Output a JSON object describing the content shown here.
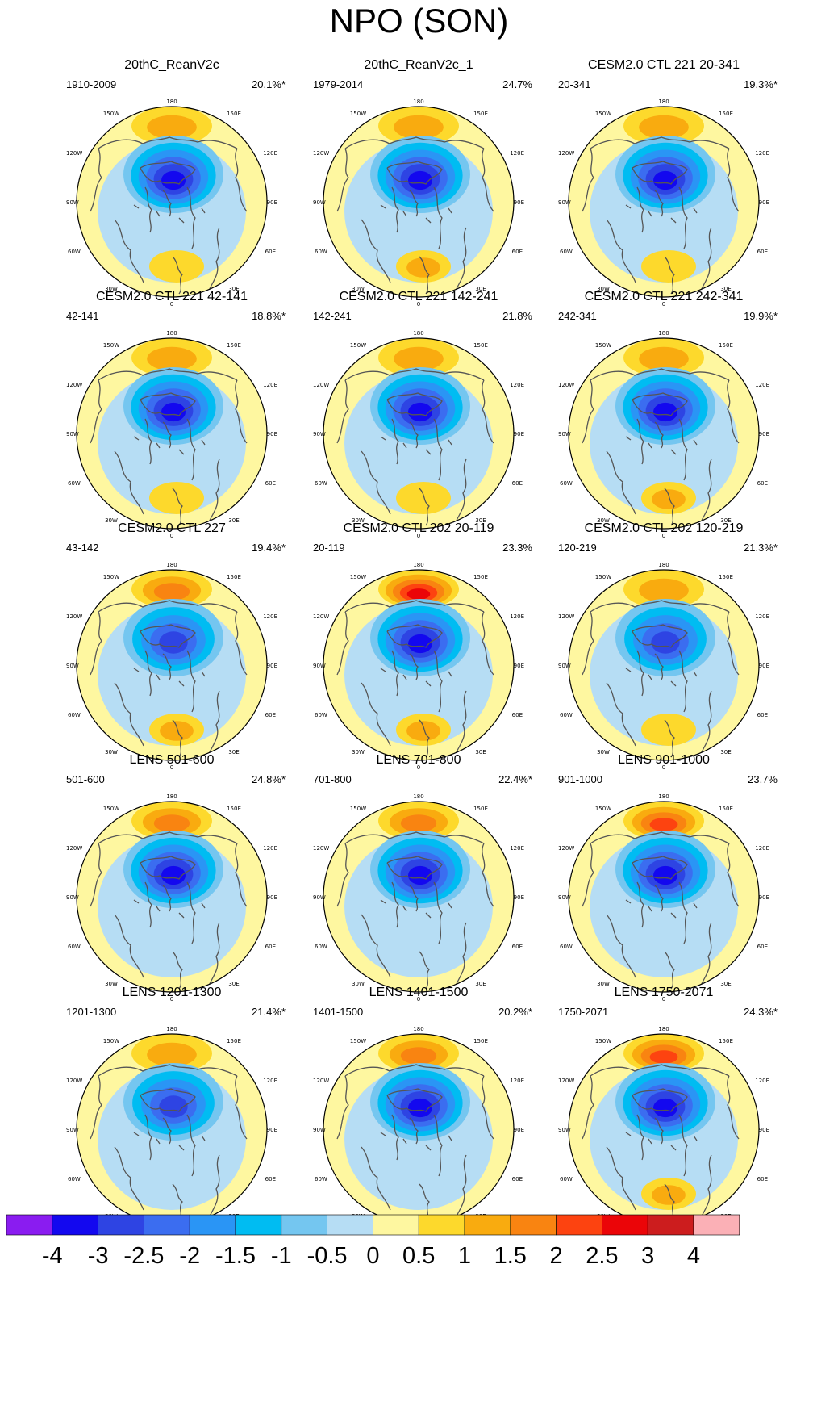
{
  "title": "NPO (SON)",
  "colors": {
    "levels": [
      "#8a1cf0",
      "#1308ef",
      "#2e44e3",
      "#3b6df0",
      "#2a95f5",
      "#00bcf2",
      "#74c6f0",
      "#b6ddf4",
      "#fef7a0",
      "#fdd92c",
      "#f9ab0f",
      "#f98411",
      "#fd4310",
      "#eb0508",
      "#cc1d1e",
      "#fbb0b6"
    ],
    "coastline": "#555555"
  },
  "colorbar": {
    "labels": [
      "-4",
      "-3",
      "-2.5",
      "-2",
      "-1.5",
      "-1",
      "-0.5",
      "0",
      "0.5",
      "1",
      "1.5",
      "2",
      "2.5",
      "3",
      "4"
    ]
  },
  "lon_labels": {
    "l180": "180",
    "l150w": "150W",
    "l150e": "150E",
    "l120w": "120W",
    "l120e": "120E",
    "l90w": "90W",
    "l90e": "90E",
    "l60w": "60W",
    "l60e": "60E",
    "l30w": "30W",
    "l30e": "30E",
    "l0": "0"
  },
  "panels": [
    {
      "title": "20thC_ReanV2c",
      "period": "1910-2009",
      "percent": "20.1%*",
      "pattern": {
        "pos_pacific": 1.2,
        "neg_center": -3.1,
        "pos_atlantic": 0.9
      }
    },
    {
      "title": "20thC_ReanV2c_1",
      "period": "1979-2014",
      "percent": "24.7%",
      "pattern": {
        "pos_pacific": 1.4,
        "neg_center": -3.0,
        "pos_atlantic": 1.1
      }
    },
    {
      "title": "CESM2.0 CTL 221 20-341",
      "period": "20-341",
      "percent": "19.3%*",
      "pattern": {
        "pos_pacific": 1.1,
        "neg_center": -3.3,
        "pos_atlantic": 0.6
      }
    },
    {
      "title": "CESM2.0 CTL 221 42-141",
      "period": "42-141",
      "percent": "18.8%*",
      "pattern": {
        "pos_pacific": 1.1,
        "neg_center": -3.6,
        "pos_atlantic": 0.7
      }
    },
    {
      "title": "CESM2.0 CTL 221 142-241",
      "period": "142-241",
      "percent": "21.8%",
      "pattern": {
        "pos_pacific": 1.2,
        "neg_center": -3.5,
        "pos_atlantic": 0.8
      }
    },
    {
      "title": "CESM2.0 CTL 221 242-341",
      "period": "242-341",
      "percent": "19.9%*",
      "pattern": {
        "pos_pacific": 1.1,
        "neg_center": -3.0,
        "pos_atlantic": 1.1
      }
    },
    {
      "title": "CESM2.0 CTL 227",
      "period": "43-142",
      "percent": "19.4%*",
      "pattern": {
        "pos_pacific": 1.6,
        "neg_center": -2.8,
        "pos_atlantic": 1.2
      }
    },
    {
      "title": "CESM2.0 CTL 202 20-119",
      "period": "20-119",
      "percent": "23.3%",
      "pattern": {
        "pos_pacific": 2.6,
        "neg_center": -3.3,
        "pos_atlantic": 1.2
      }
    },
    {
      "title": "CESM2.0 CTL 202 120-219",
      "period": "120-219",
      "percent": "21.3%*",
      "pattern": {
        "pos_pacific": 1.2,
        "neg_center": -2.7,
        "pos_atlantic": 0.8
      }
    },
    {
      "title": "LENS 501-600",
      "period": "501-600",
      "percent": "24.8%*",
      "pattern": {
        "pos_pacific": 1.6,
        "neg_center": -3.6,
        "pos_atlantic": 0.4
      }
    },
    {
      "title": "LENS 701-800",
      "period": "701-800",
      "percent": "22.4%*",
      "pattern": {
        "pos_pacific": 1.6,
        "neg_center": -3.1,
        "pos_atlantic": 0.4
      }
    },
    {
      "title": "LENS 901-1000",
      "period": "901-1000",
      "percent": "23.7%",
      "pattern": {
        "pos_pacific": 2.1,
        "neg_center": -3.2,
        "pos_atlantic": 0.4
      }
    },
    {
      "title": "LENS 1201-1300",
      "period": "1201-1300",
      "percent": "21.4%*",
      "pattern": {
        "pos_pacific": 1.2,
        "neg_center": -2.6,
        "pos_atlantic": 0.4
      }
    },
    {
      "title": "LENS 1401-1500",
      "period": "1401-1500",
      "percent": "20.2%*",
      "pattern": {
        "pos_pacific": 1.6,
        "neg_center": -3.6,
        "pos_atlantic": 0.4
      }
    },
    {
      "title": "LENS 1750-2071",
      "period": "1750-2071",
      "percent": "24.3%*",
      "pattern": {
        "pos_pacific": 2.1,
        "neg_center": -3.6,
        "pos_atlantic": 1.1
      }
    }
  ]
}
